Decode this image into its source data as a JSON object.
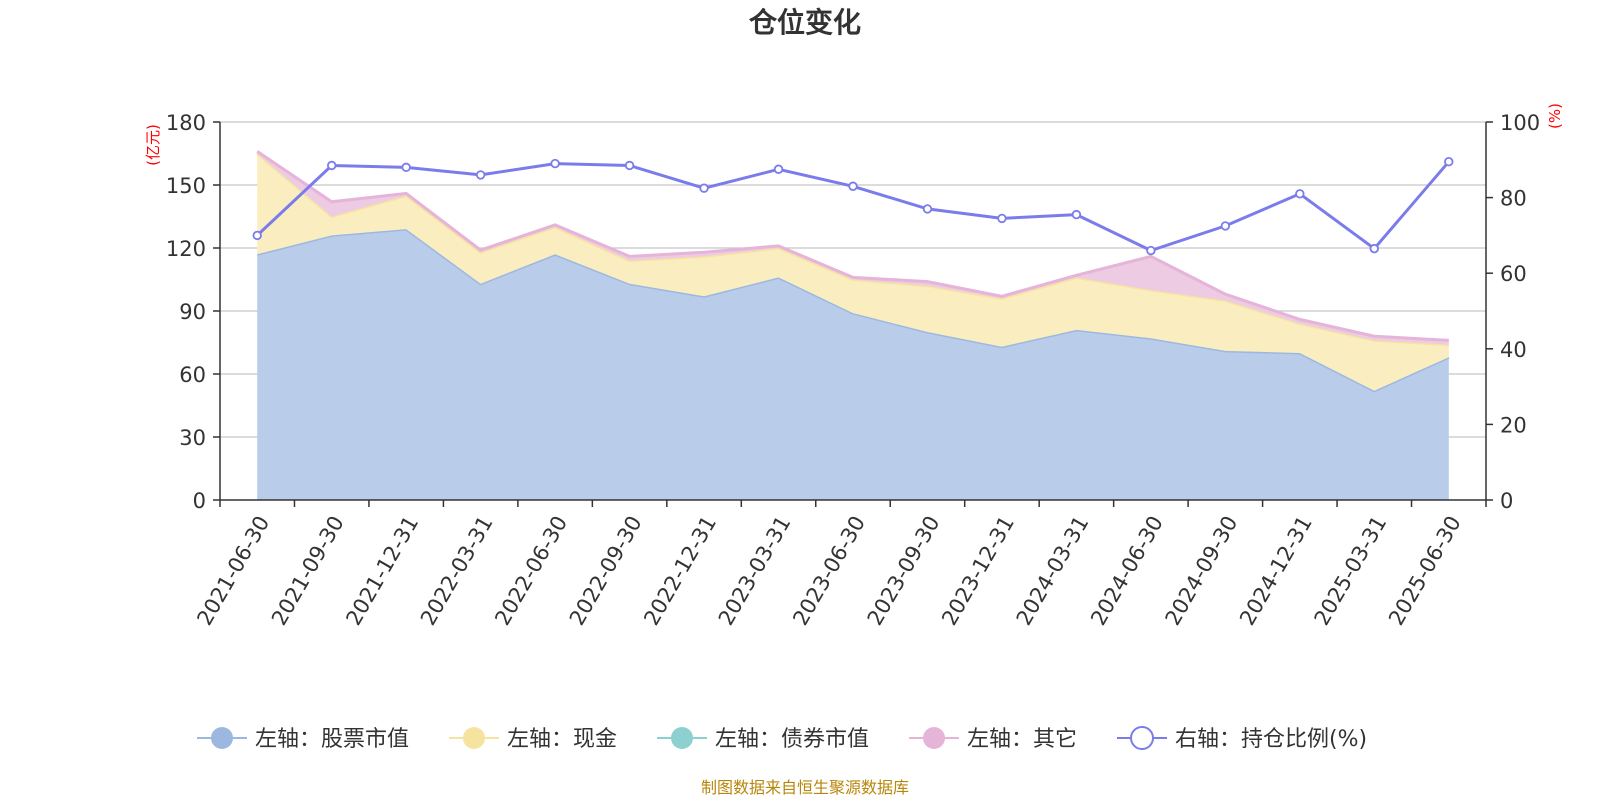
{
  "chart_data": {
    "type": "area",
    "title": "仓位变化",
    "left_axis_unit": "(亿元)",
    "right_axis_unit": "(%)",
    "categories": [
      "2021-06-30",
      "2021-09-30",
      "2021-12-31",
      "2022-03-31",
      "2022-06-30",
      "2022-09-30",
      "2022-12-31",
      "2023-03-31",
      "2023-06-30",
      "2023-09-30",
      "2023-12-31",
      "2024-03-31",
      "2024-06-30",
      "2024-09-30",
      "2024-12-31",
      "2025-03-31",
      "2025-06-30"
    ],
    "left_ylim": [
      0,
      180
    ],
    "left_ticks": [
      0,
      30,
      60,
      90,
      120,
      150,
      180
    ],
    "right_ylim": [
      0,
      100
    ],
    "right_ticks": [
      0,
      20,
      40,
      60,
      80,
      100
    ],
    "grid": true,
    "stacked": true,
    "legend_position": "bottom",
    "series": [
      {
        "name": "左轴：股票市值",
        "axis": "left",
        "type": "area",
        "color": "#9db8e0",
        "fill": "#b9cdeb",
        "values": [
          117,
          126,
          129,
          103,
          117,
          103,
          97,
          106,
          89,
          80,
          73,
          81,
          77,
          71,
          70,
          52,
          68
        ]
      },
      {
        "name": "左轴：现金",
        "axis": "left",
        "type": "area",
        "color": "#f7e3a0",
        "fill": "#faeec0",
        "values": [
          48,
          9,
          16,
          15,
          13,
          11,
          19,
          14,
          16,
          22,
          23,
          25,
          23,
          24,
          14,
          24,
          6
        ]
      },
      {
        "name": "左轴：债券市值",
        "axis": "left",
        "type": "area",
        "color": "#8dd0d0",
        "fill": "#b2e3e3",
        "values": [
          0,
          0,
          0,
          0,
          0,
          0,
          0,
          0,
          0,
          0,
          0,
          0,
          0,
          0,
          0,
          0,
          0
        ]
      },
      {
        "name": "左轴：其它",
        "axis": "left",
        "type": "area",
        "color": "#e6b3d9",
        "fill": "#eccbe3",
        "values": [
          1,
          7,
          1,
          1,
          1,
          2,
          2,
          1,
          1,
          2,
          1,
          1,
          16,
          3,
          2,
          2,
          2
        ]
      },
      {
        "name": "右轴：持仓比例(%)",
        "axis": "right",
        "type": "line",
        "color": "#7b7cec",
        "values": [
          70,
          88.5,
          88,
          86,
          89,
          88.5,
          82.5,
          87.5,
          83,
          77,
          74.5,
          75.5,
          66,
          72.5,
          81,
          66.5,
          89.5
        ]
      }
    ],
    "source_note": "制图数据来自恒生聚源数据库"
  }
}
